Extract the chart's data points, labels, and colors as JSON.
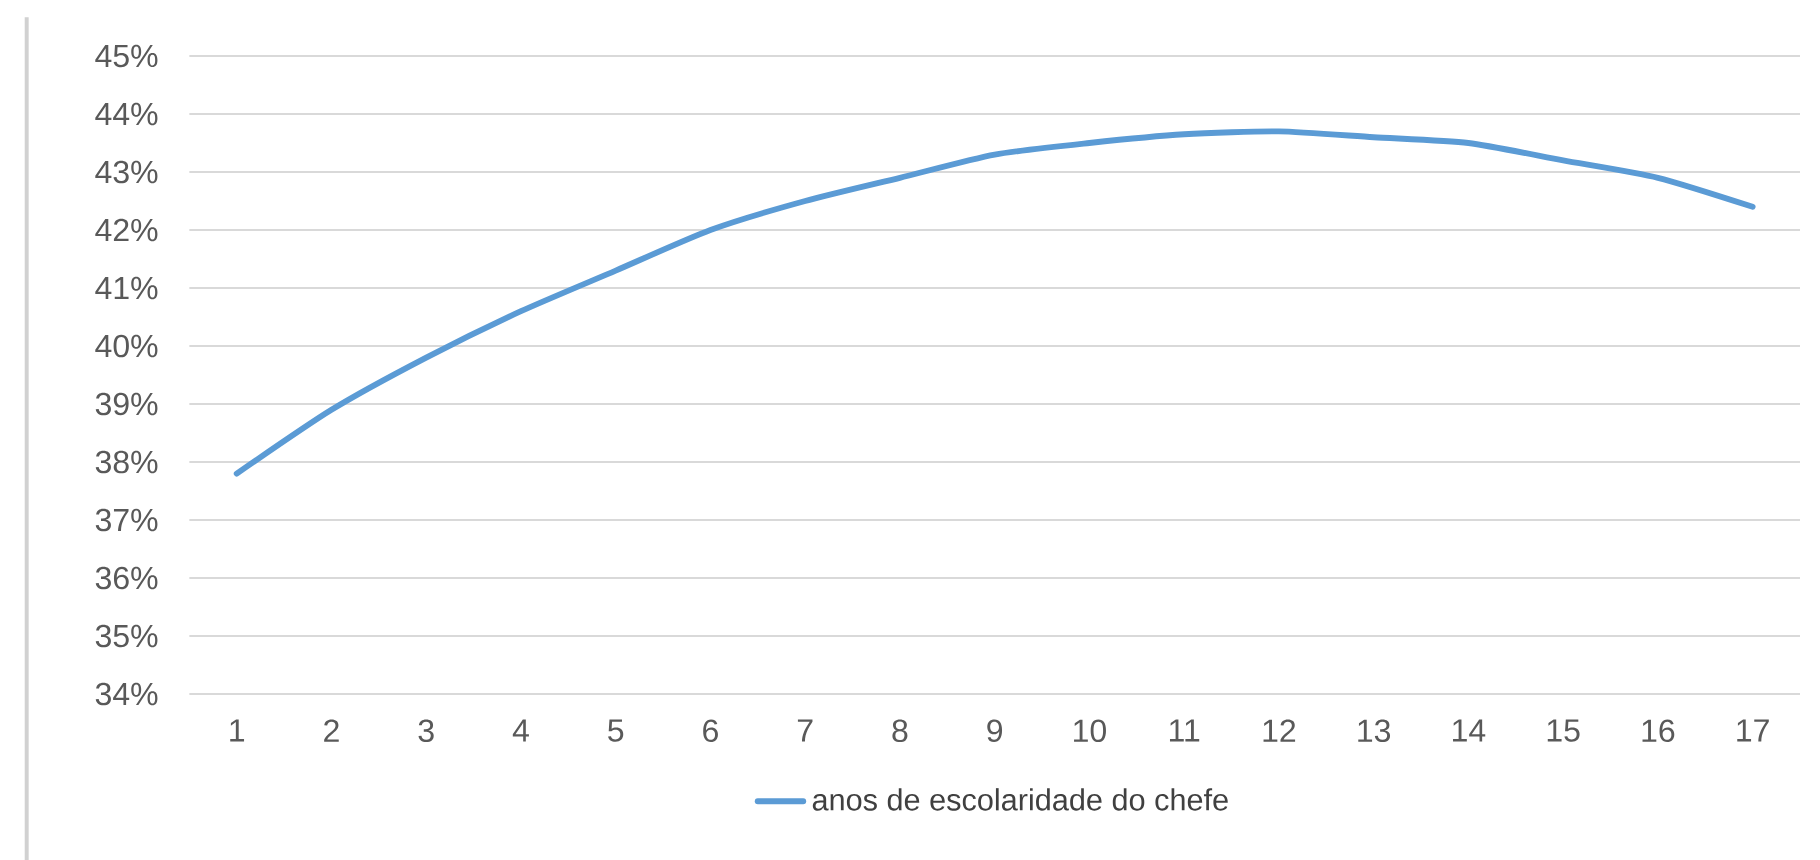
{
  "chart_data": {
    "type": "line",
    "categories": [
      "1",
      "2",
      "3",
      "4",
      "5",
      "6",
      "7",
      "8",
      "9",
      "10",
      "11",
      "12",
      "13",
      "14",
      "15",
      "16",
      "17"
    ],
    "series": [
      {
        "name": "anos de escolaridade do chefe",
        "color": "#5b9bd5",
        "values": [
          37.8,
          38.9,
          39.8,
          40.6,
          41.3,
          42.0,
          42.5,
          42.9,
          43.3,
          43.5,
          43.65,
          43.7,
          43.6,
          43.5,
          43.2,
          42.9,
          42.4
        ]
      }
    ],
    "ylim": [
      34,
      45
    ],
    "yticks": [
      {
        "value": 34,
        "label": "34%"
      },
      {
        "value": 35,
        "label": "35%"
      },
      {
        "value": 36,
        "label": "36%"
      },
      {
        "value": 37,
        "label": "37%"
      },
      {
        "value": 38,
        "label": "38%"
      },
      {
        "value": 39,
        "label": "39%"
      },
      {
        "value": 40,
        "label": "40%"
      },
      {
        "value": 41,
        "label": "41%"
      },
      {
        "value": 42,
        "label": "42%"
      },
      {
        "value": 43,
        "label": "43%"
      },
      {
        "value": 44,
        "label": "44%"
      },
      {
        "value": 45,
        "label": "45%"
      }
    ],
    "grid": "y",
    "legend": "bottom",
    "marker": "none",
    "line_style": "solid"
  }
}
